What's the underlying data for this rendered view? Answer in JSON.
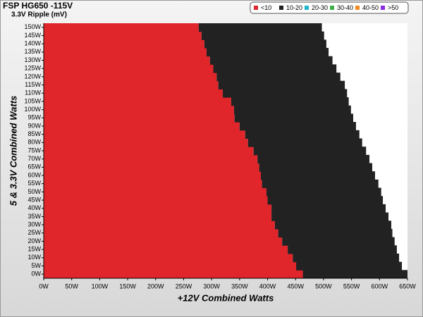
{
  "chart_data": {
    "type": "stacked-barh",
    "title": "FSP HG650 -115V",
    "subtitle": "3.3V Ripple (mV)",
    "x_label": "+12V Combined Watts",
    "y_label": "5 & 3.3V Combined Watts",
    "categories": [
      "0W",
      "5W",
      "10W",
      "15W",
      "20W",
      "25W",
      "30W",
      "35W",
      "40W",
      "45W",
      "50W",
      "55W",
      "60W",
      "65W",
      "70W",
      "75W",
      "80W",
      "85W",
      "90W",
      "95W",
      "100W",
      "105W",
      "110W",
      "115W",
      "120W",
      "125W",
      "130W",
      "135W",
      "140W",
      "145W",
      "150W"
    ],
    "series": [
      {
        "name": "<10",
        "color": "#e0252b",
        "values": [
          463,
          451,
          445,
          436,
          426,
          419,
          413,
          407,
          407,
          400,
          398,
          390,
          388,
          385,
          382,
          375,
          365,
          360,
          350,
          341,
          340,
          335,
          320,
          312,
          309,
          303,
          297,
          291,
          287,
          282,
          277
        ]
      },
      {
        "name": "10-20",
        "color": "#222222",
        "values": [
          187,
          189,
          190,
          195,
          201,
          204,
          208,
          209,
          204,
          206,
          205,
          208,
          204,
          202,
          200,
          201,
          204,
          204,
          208,
          212,
          209,
          210,
          222,
          226,
          221,
          220,
          219,
          218,
          218,
          219,
          220
        ]
      },
      {
        "name": "20-30",
        "color": "#1fb6c9",
        "values": [
          null,
          null,
          null,
          null,
          null,
          null,
          null,
          null,
          null,
          null,
          null,
          null,
          null,
          null,
          null,
          null,
          null,
          null,
          null,
          null,
          null,
          null,
          null,
          null,
          null,
          null,
          null,
          null,
          null,
          null,
          null
        ]
      },
      {
        "name": "30-40",
        "color": "#3db04a",
        "values": [
          null,
          null,
          null,
          null,
          null,
          null,
          null,
          null,
          null,
          null,
          null,
          null,
          null,
          null,
          null,
          null,
          null,
          null,
          null,
          null,
          null,
          null,
          null,
          null,
          null,
          null,
          null,
          null,
          null,
          null,
          null
        ]
      },
      {
        "name": "40-50",
        "color": "#f08a24",
        "values": [
          null,
          null,
          null,
          null,
          null,
          null,
          null,
          null,
          null,
          null,
          null,
          null,
          null,
          null,
          null,
          null,
          null,
          null,
          null,
          null,
          null,
          null,
          null,
          null,
          null,
          null,
          null,
          null,
          null,
          null,
          null
        ]
      },
      {
        "name": ">50",
        "color": "#8a2be2",
        "values": [
          null,
          null,
          null,
          null,
          null,
          null,
          null,
          null,
          null,
          null,
          null,
          null,
          null,
          null,
          null,
          null,
          null,
          null,
          null,
          null,
          null,
          null,
          null,
          null,
          null,
          null,
          null,
          null,
          null,
          null,
          null
        ]
      }
    ],
    "xlim": [
      0,
      650
    ],
    "xticks": [
      {
        "value": 0,
        "label": "0W"
      },
      {
        "value": 50,
        "label": "50W"
      },
      {
        "value": 100,
        "label": "100W"
      },
      {
        "value": 150,
        "label": "150W"
      },
      {
        "value": 200,
        "label": "200W"
      },
      {
        "value": 250,
        "label": "250W"
      },
      {
        "value": 300,
        "label": "300W"
      },
      {
        "value": 350,
        "label": "350W"
      },
      {
        "value": 400,
        "label": "400W"
      },
      {
        "value": 450,
        "label": "450W"
      },
      {
        "value": 500,
        "label": "500W"
      },
      {
        "value": 550,
        "label": "550W"
      },
      {
        "value": 600,
        "label": "600W"
      },
      {
        "value": 650,
        "label": "650W"
      }
    ],
    "legend": "top-right"
  }
}
